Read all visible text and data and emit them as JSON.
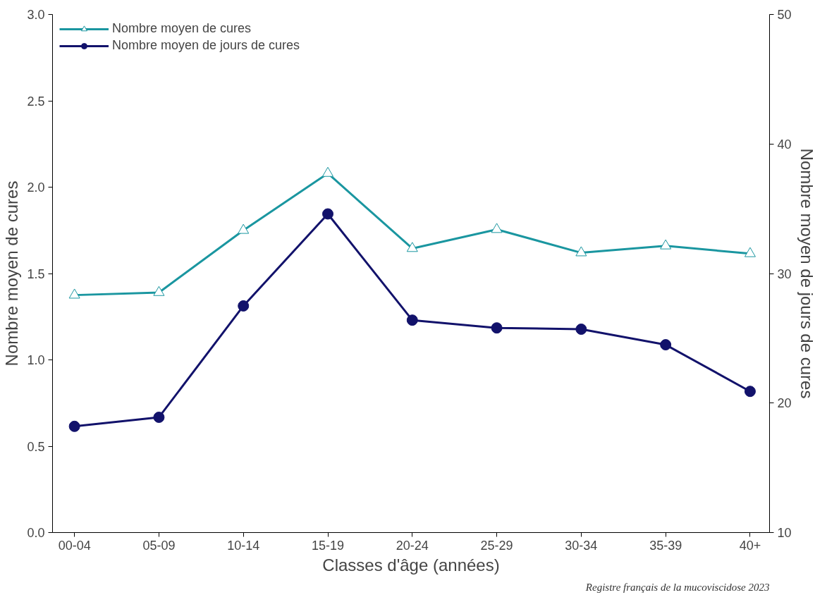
{
  "chart_data": {
    "type": "line",
    "xlabel": "Classes d'âge (années)",
    "ylabel": "Nombre moyen de cures",
    "y2label": "Nombre moyen de jours de cures",
    "categories": [
      "00-04",
      "05-09",
      "10-14",
      "15-19",
      "20-24",
      "25-29",
      "30-34",
      "35-39",
      "40+"
    ],
    "series": [
      {
        "name": "Nombre moyen de cures",
        "color": "#1a96a0",
        "marker": "triangle",
        "values": [
          1.375,
          1.39,
          1.75,
          2.08,
          1.645,
          1.755,
          1.62,
          1.66,
          1.615
        ]
      },
      {
        "name": "Nombre moyen de jours de cures",
        "color": "#12126b",
        "marker": "circle",
        "axis": "y2",
        "values": [
          18.2,
          18.9,
          27.5,
          34.6,
          26.4,
          25.8,
          25.7,
          24.5,
          20.9
        ]
      }
    ],
    "ylim": [
      0,
      3
    ],
    "yticks": [
      {
        "value": 0,
        "label": "0.0"
      },
      0.5,
      {
        "value": 1,
        "label": "1.0"
      },
      1.5,
      {
        "value": 2,
        "label": "2.0"
      },
      2.5,
      {
        "value": 3,
        "label": "3.0"
      }
    ],
    "y2lim": [
      10,
      50
    ],
    "y2ticks": [
      10,
      20,
      30,
      40,
      50
    ],
    "legend": "top left",
    "grid": false,
    "line_style": "solid",
    "annotations": [
      "Registre français de la mucoviscidose 2023"
    ]
  }
}
